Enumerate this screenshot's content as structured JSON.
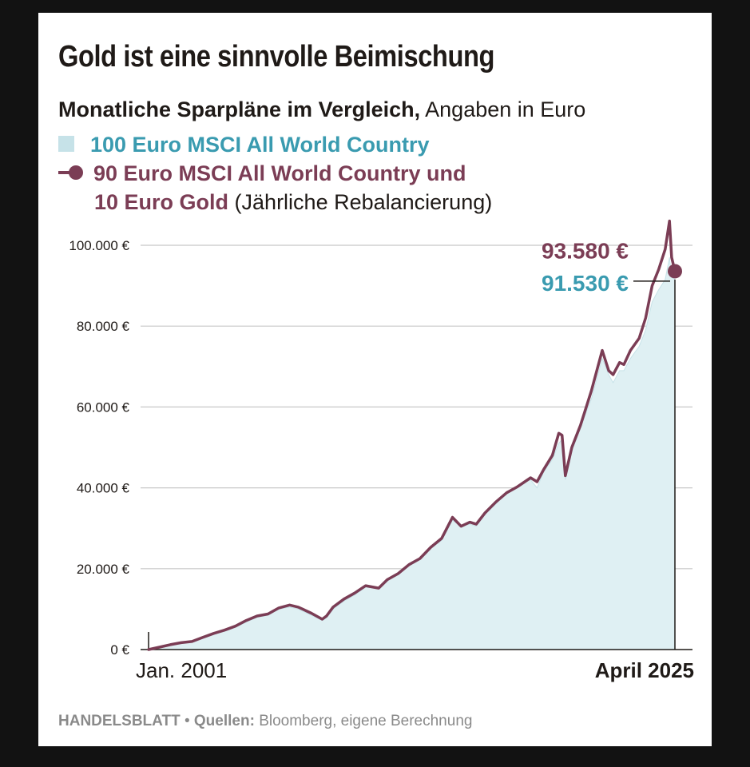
{
  "title": "Gold ist eine sinnvolle Beimischung",
  "subtitle_bold": "Monatliche Sparpläne im Vergleich,",
  "subtitle_normal": "Angaben in Euro",
  "legend": {
    "msci": "100 Euro MSCI All World Country",
    "gold_line1": "90 Euro MSCI All World Country und",
    "gold_line2_bold": "10 Euro Gold",
    "gold_line2_normal": "(Jährliche Rebalancierung)"
  },
  "footer": {
    "brand": "HANDELSBLATT",
    "sep": "•",
    "sources_label": "Quellen:",
    "sources": "Bloomberg, eigene Berechnung"
  },
  "colors": {
    "msci_fill": "#dff0f3",
    "msci_text": "#3a9bb0",
    "gold_line": "#7b3d55",
    "grid": "#c8c8c8",
    "axis": "#1f1a17"
  },
  "chart_data": {
    "type": "area",
    "x_start_label": "Jan. 2001",
    "x_end_label": "April 2025",
    "x_range": [
      2001.0,
      2025.25
    ],
    "ylim": [
      0,
      100000
    ],
    "yticks": [
      0,
      20000,
      40000,
      60000,
      80000,
      100000
    ],
    "ytick_labels": [
      "0 €",
      "20.000 €",
      "40.000 €",
      "60.000 €",
      "80.000 €",
      "100.000 €"
    ],
    "grid": true,
    "end_value_gold_label": "93.580 €",
    "end_value_msci_label": "91.530 €",
    "series": [
      {
        "name": "100 Euro MSCI All World Country",
        "style": "area",
        "x": [
          2001.0,
          2001.5,
          2002.0,
          2002.5,
          2003.0,
          2003.5,
          2004.0,
          2004.5,
          2005.0,
          2005.5,
          2006.0,
          2006.5,
          2007.0,
          2007.5,
          2007.9,
          2008.5,
          2009.0,
          2009.2,
          2009.5,
          2010.0,
          2010.5,
          2011.0,
          2011.6,
          2012.0,
          2012.5,
          2013.0,
          2013.5,
          2014.0,
          2014.5,
          2015.0,
          2015.4,
          2015.8,
          2016.1,
          2016.5,
          2017.0,
          2017.5,
          2018.0,
          2018.6,
          2018.9,
          2019.2,
          2019.6,
          2019.9,
          2020.05,
          2020.2,
          2020.5,
          2020.9,
          2021.4,
          2021.9,
          2022.2,
          2022.4,
          2022.7,
          2022.9,
          2023.2,
          2023.6,
          2023.9,
          2024.2,
          2024.5,
          2024.8,
          2025.0,
          2025.1,
          2025.25
        ],
        "y": [
          0,
          600,
          1200,
          1600,
          1800,
          2800,
          3800,
          4500,
          5500,
          6800,
          8000,
          8500,
          10000,
          10500,
          10000,
          8500,
          7200,
          7800,
          10000,
          12000,
          13500,
          15500,
          15000,
          17000,
          18500,
          21000,
          22500,
          25000,
          27000,
          32000,
          30500,
          31000,
          30500,
          33500,
          36000,
          39000,
          40500,
          42000,
          40000,
          44000,
          47000,
          51000,
          52000,
          42000,
          49000,
          55000,
          62000,
          72000,
          68000,
          66000,
          69000,
          69000,
          72000,
          75000,
          79000,
          86000,
          89000,
          91500,
          97000,
          92000,
          91530
        ]
      },
      {
        "name": "90 Euro MSCI All World Country und 10 Euro Gold",
        "style": "line",
        "x": [
          2001.0,
          2001.5,
          2002.0,
          2002.5,
          2003.0,
          2003.5,
          2004.0,
          2004.5,
          2005.0,
          2005.5,
          2006.0,
          2006.5,
          2007.0,
          2007.5,
          2007.9,
          2008.5,
          2009.0,
          2009.2,
          2009.5,
          2010.0,
          2010.5,
          2011.0,
          2011.6,
          2012.0,
          2012.5,
          2013.0,
          2013.5,
          2014.0,
          2014.5,
          2015.0,
          2015.4,
          2015.8,
          2016.1,
          2016.5,
          2017.0,
          2017.5,
          2018.0,
          2018.6,
          2018.9,
          2019.2,
          2019.6,
          2019.9,
          2020.05,
          2020.2,
          2020.5,
          2020.9,
          2021.4,
          2021.9,
          2022.2,
          2022.4,
          2022.7,
          2022.9,
          2023.2,
          2023.6,
          2023.9,
          2024.2,
          2024.5,
          2024.8,
          2025.0,
          2025.1,
          2025.25
        ],
        "y": [
          0,
          600,
          1200,
          1700,
          2000,
          3000,
          4000,
          4800,
          5800,
          7200,
          8300,
          8800,
          10300,
          11000,
          10500,
          9000,
          7500,
          8300,
          10500,
          12500,
          14000,
          15800,
          15200,
          17300,
          18800,
          21000,
          22500,
          25300,
          27500,
          32700,
          30500,
          31500,
          31000,
          33800,
          36500,
          38800,
          40300,
          42500,
          41500,
          44500,
          48000,
          53500,
          53000,
          43000,
          50000,
          55500,
          64000,
          74000,
          69000,
          68000,
          71000,
          70500,
          74000,
          77000,
          82000,
          90000,
          94000,
          99000,
          106000,
          97000,
          93580
        ]
      }
    ]
  }
}
